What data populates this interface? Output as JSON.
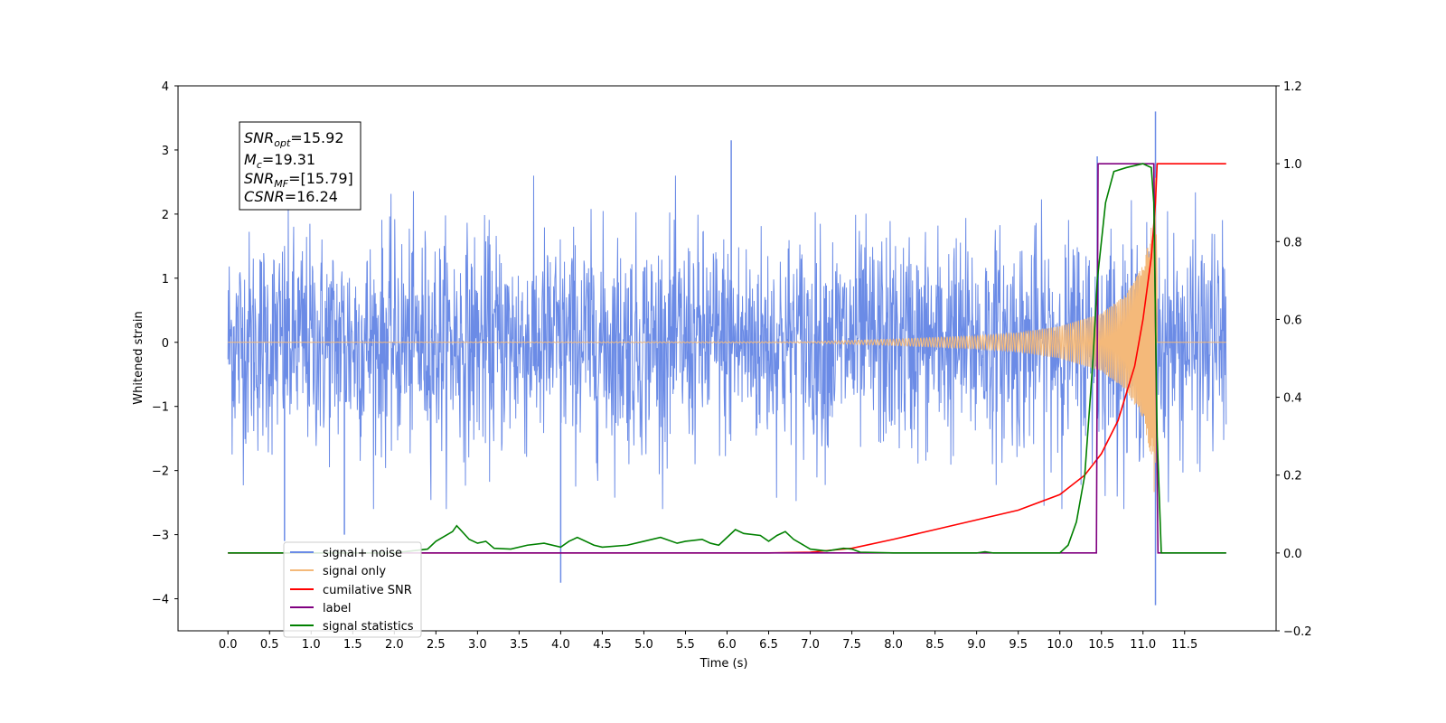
{
  "chart_data": {
    "type": "line",
    "xlabel": "Time (s)",
    "ylabel_left": "Whitened strain",
    "ylabel_right": "",
    "xlim": [
      -0.6,
      12.6
    ],
    "ylim_left": [
      -4.5,
      4.0
    ],
    "ylim_right": [
      -0.2,
      1.2
    ],
    "x_ticks": [
      "0.0",
      "0.5",
      "1.0",
      "1.5",
      "2.0",
      "2.5",
      "3.0",
      "3.5",
      "4.0",
      "4.5",
      "5.0",
      "5.5",
      "6.0",
      "6.5",
      "7.0",
      "7.5",
      "8.0",
      "8.5",
      "9.0",
      "9.5",
      "10.0",
      "10.5",
      "11.0",
      "11.5"
    ],
    "y_ticks_left": [
      "4",
      "3",
      "2",
      "1",
      "0",
      "−1",
      "−2",
      "−3",
      "−4"
    ],
    "y_ticks_right": [
      "1.2",
      "1.0",
      "0.8",
      "0.6",
      "0.4",
      "0.2",
      "0.0",
      "−0.2"
    ],
    "grid": false,
    "legend_position": "lower-left",
    "annotation": {
      "snr_opt": {
        "base": "SNR",
        "sub": "opt",
        "value": "=15.92"
      },
      "mc": {
        "base": "M",
        "sub": "c",
        "value": "=19.31"
      },
      "snr_mf": {
        "base": "SNR",
        "sub": "MF",
        "value": "=[15.79]"
      },
      "csnr": {
        "base": "CSNR",
        "value": "=16.24"
      }
    },
    "series": [
      {
        "name": "signal+ noise",
        "axis": "left",
        "color": "#6b8be6",
        "description_values": "noisy whitened strain from 0.0 to 12.0 s, amplitude roughly between -2.5 and 2.5 with spikes to 3.6 at 11.15 s and -4.1 at 11.15 s",
        "spikes": [
          [
            4.0,
            -3.75
          ],
          [
            6.05,
            3.15
          ],
          [
            10.45,
            2.9
          ],
          [
            11.15,
            3.6
          ],
          [
            11.15,
            -4.1
          ],
          [
            0.68,
            -3.1
          ],
          [
            1.4,
            -3.0
          ]
        ]
      },
      {
        "name": "signal only",
        "axis": "left",
        "color": "#f4b97a",
        "envelope": [
          [
            0.0,
            0.0
          ],
          [
            7.0,
            0.01
          ],
          [
            8.0,
            0.05
          ],
          [
            9.0,
            0.1
          ],
          [
            9.5,
            0.15
          ],
          [
            10.0,
            0.25
          ],
          [
            10.5,
            0.45
          ],
          [
            10.8,
            0.75
          ],
          [
            11.0,
            1.2
          ],
          [
            11.1,
            1.8
          ],
          [
            11.15,
            2.6
          ],
          [
            11.18,
            0.0
          ],
          [
            12.0,
            0.0
          ]
        ]
      },
      {
        "name": "cumilative SNR",
        "axis": "right",
        "color": "#ff0000",
        "points": [
          [
            0.0,
            0.0
          ],
          [
            6.5,
            0.0
          ],
          [
            7.0,
            0.002
          ],
          [
            7.5,
            0.012
          ],
          [
            8.0,
            0.035
          ],
          [
            8.5,
            0.06
          ],
          [
            9.0,
            0.085
          ],
          [
            9.5,
            0.11
          ],
          [
            10.0,
            0.15
          ],
          [
            10.3,
            0.2
          ],
          [
            10.5,
            0.255
          ],
          [
            10.7,
            0.34
          ],
          [
            10.9,
            0.48
          ],
          [
            11.0,
            0.6
          ],
          [
            11.1,
            0.76
          ],
          [
            11.15,
            0.9
          ],
          [
            11.17,
            1.0
          ],
          [
            12.0,
            1.0
          ]
        ]
      },
      {
        "name": "label",
        "axis": "right",
        "color": "#800080",
        "points": [
          [
            0.0,
            0.0
          ],
          [
            10.44,
            0.0
          ],
          [
            10.46,
            1.0
          ],
          [
            11.13,
            1.0
          ],
          [
            11.18,
            0.0
          ],
          [
            12.0,
            0.0
          ]
        ]
      },
      {
        "name": "signal statistics",
        "axis": "right",
        "color": "#008000",
        "points": [
          [
            0.0,
            0.0
          ],
          [
            2.0,
            0.0
          ],
          [
            2.2,
            0.005
          ],
          [
            2.4,
            0.01
          ],
          [
            2.5,
            0.03
          ],
          [
            2.7,
            0.055
          ],
          [
            2.75,
            0.07
          ],
          [
            2.9,
            0.035
          ],
          [
            3.0,
            0.025
          ],
          [
            3.1,
            0.03
          ],
          [
            3.2,
            0.012
          ],
          [
            3.4,
            0.01
          ],
          [
            3.6,
            0.02
          ],
          [
            3.8,
            0.025
          ],
          [
            4.0,
            0.015
          ],
          [
            4.1,
            0.03
          ],
          [
            4.2,
            0.04
          ],
          [
            4.4,
            0.02
          ],
          [
            4.5,
            0.015
          ],
          [
            4.8,
            0.02
          ],
          [
            5.0,
            0.03
          ],
          [
            5.2,
            0.04
          ],
          [
            5.4,
            0.025
          ],
          [
            5.5,
            0.03
          ],
          [
            5.7,
            0.035
          ],
          [
            5.8,
            0.025
          ],
          [
            5.9,
            0.02
          ],
          [
            6.0,
            0.04
          ],
          [
            6.1,
            0.06
          ],
          [
            6.2,
            0.05
          ],
          [
            6.4,
            0.045
          ],
          [
            6.5,
            0.03
          ],
          [
            6.6,
            0.045
          ],
          [
            6.7,
            0.055
          ],
          [
            6.8,
            0.035
          ],
          [
            7.0,
            0.01
          ],
          [
            7.2,
            0.005
          ],
          [
            7.4,
            0.012
          ],
          [
            7.5,
            0.01
          ],
          [
            7.6,
            0.002
          ],
          [
            8.0,
            0.0
          ],
          [
            9.0,
            0.0
          ],
          [
            9.1,
            0.003
          ],
          [
            9.2,
            0.0
          ],
          [
            10.0,
            0.0
          ],
          [
            10.1,
            0.02
          ],
          [
            10.2,
            0.08
          ],
          [
            10.3,
            0.2
          ],
          [
            10.4,
            0.5
          ],
          [
            10.45,
            0.7
          ],
          [
            10.55,
            0.9
          ],
          [
            10.65,
            0.98
          ],
          [
            10.8,
            0.99
          ],
          [
            11.0,
            1.0
          ],
          [
            11.1,
            0.99
          ],
          [
            11.13,
            0.9
          ],
          [
            11.17,
            0.3
          ],
          [
            11.22,
            0.0
          ],
          [
            12.0,
            0.0
          ]
        ]
      }
    ]
  }
}
